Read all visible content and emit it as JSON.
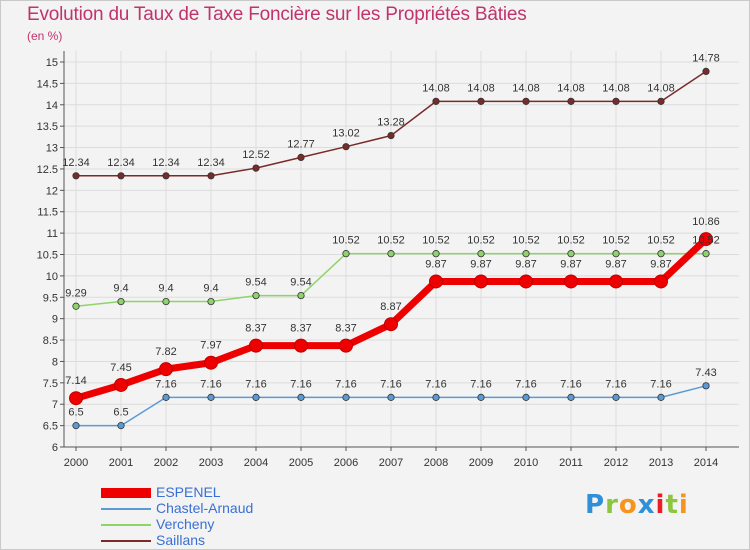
{
  "brand": {
    "letters": [
      "P",
      "r",
      "o",
      "x",
      "i",
      "t",
      "i"
    ],
    "colors": [
      "#2f8fd8",
      "#8cc63f",
      "#f7941d",
      "#2f8fd8",
      "#ed1c24",
      "#8cc63f",
      "#f7941d"
    ]
  },
  "chart_data": {
    "type": "line",
    "title": "Evolution du Taux de Taxe Foncière sur les Propriétés Bâties",
    "subtitle": "(en %)",
    "xlabel": "",
    "ylabel": "(en %)",
    "categories": [
      "2000",
      "2001",
      "2002",
      "2003",
      "2004",
      "2005",
      "2006",
      "2007",
      "2008",
      "2009",
      "2010",
      "2011",
      "2012",
      "2013",
      "2014"
    ],
    "ylim": [
      6,
      15
    ],
    "yticks": [
      "6",
      "6.5",
      "7",
      "7.5",
      "8",
      "8.5",
      "9",
      "9.5",
      "10",
      "10.5",
      "11",
      "11.5",
      "12",
      "12.5",
      "13",
      "13.5",
      "14",
      "14.5",
      "15"
    ],
    "grid": true,
    "legend_position": "bottom-left",
    "series": [
      {
        "name": "ESPENEL",
        "color": "#ee0000",
        "emphasis": true,
        "values": [
          7.14,
          7.45,
          7.82,
          7.97,
          8.37,
          8.37,
          8.37,
          8.87,
          9.87,
          9.87,
          9.87,
          9.87,
          9.87,
          9.87,
          10.86
        ],
        "labels": [
          "7.14",
          "7.45",
          "7.82",
          "7.97",
          "8.37",
          "8.37",
          "8.37",
          "8.87",
          "9.87",
          "9.87",
          "9.87",
          "9.87",
          "9.87",
          "9.87",
          "10.86"
        ]
      },
      {
        "name": "Chastel-Arnaud",
        "color": "#5b9bd5",
        "emphasis": false,
        "values": [
          6.5,
          6.5,
          7.16,
          7.16,
          7.16,
          7.16,
          7.16,
          7.16,
          7.16,
          7.16,
          7.16,
          7.16,
          7.16,
          7.16,
          7.43
        ],
        "labels": [
          "6.5",
          "6.5",
          "7.16",
          "7.16",
          "7.16",
          "7.16",
          "7.16",
          "7.16",
          "7.16",
          "7.16",
          "7.16",
          "7.16",
          "7.16",
          "7.16",
          "7.43"
        ]
      },
      {
        "name": "Vercheny",
        "color": "#8fd46a",
        "emphasis": false,
        "values": [
          9.29,
          9.4,
          9.4,
          9.4,
          9.54,
          9.54,
          10.52,
          10.52,
          10.52,
          10.52,
          10.52,
          10.52,
          10.52,
          10.52,
          10.52
        ],
        "labels": [
          "9.29",
          "9.4",
          "9.4",
          "9.4",
          "9.54",
          "9.54",
          "10.52",
          "10.52",
          "10.52",
          "10.52",
          "10.52",
          "10.52",
          "10.52",
          "10.52",
          "10.52"
        ]
      },
      {
        "name": "Saillans",
        "color": "#7a2a2a",
        "emphasis": false,
        "values": [
          12.34,
          12.34,
          12.34,
          12.34,
          12.52,
          12.77,
          13.02,
          13.28,
          14.08,
          14.08,
          14.08,
          14.08,
          14.08,
          14.08,
          14.78
        ],
        "labels": [
          "12.34",
          "12.34",
          "12.34",
          "12.34",
          "12.52",
          "12.77",
          "13.02",
          "13.28",
          "14.08",
          "14.08",
          "14.08",
          "14.08",
          "14.08",
          "14.08",
          "14.78"
        ]
      }
    ]
  }
}
